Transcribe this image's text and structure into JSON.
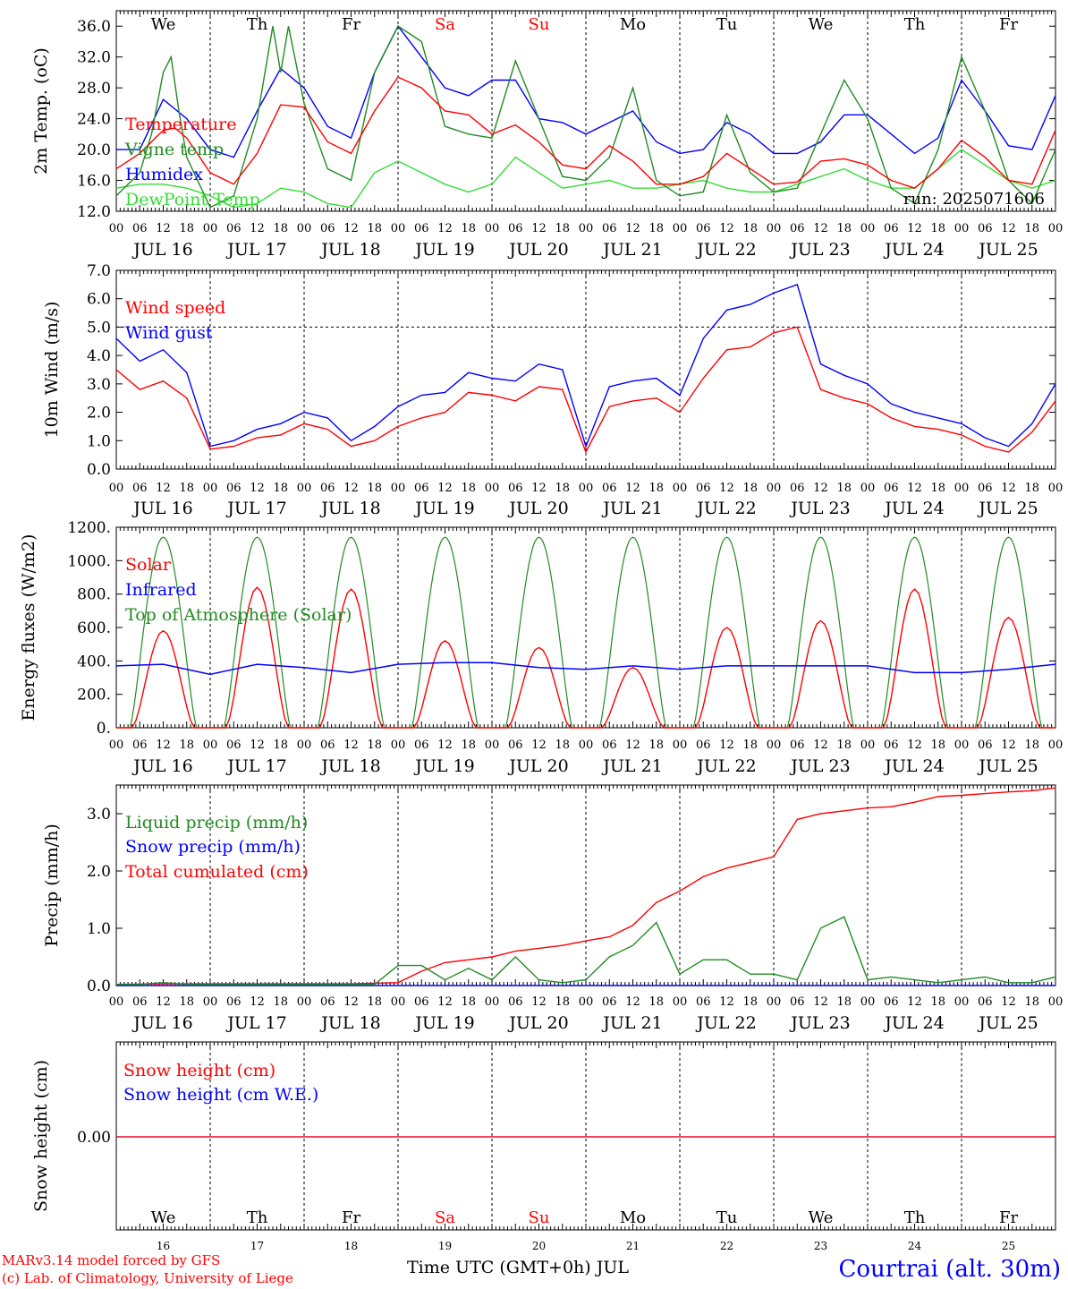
{
  "run_label": "run: 2025071606",
  "footer": {
    "model": "MARv3.14 model forced by GFS",
    "credit": "(c) Lab. of Climatology, University of Liege",
    "xlabel": "Time UTC (GMT+0h) JUL",
    "station": "Courtrai (alt. 30m)"
  },
  "colors": {
    "red": "#ff0000",
    "green": "#228b22",
    "blue": "#0000ff",
    "lightgreen": "#33dd33"
  },
  "time_axis": {
    "hour_labels": [
      "00",
      "06",
      "12",
      "18"
    ],
    "end_label": "00",
    "date_labels": [
      "JUL 16",
      "JUL 17",
      "JUL 18",
      "JUL 19",
      "JUL 20",
      "JUL 21",
      "JUL 22",
      "JUL 23",
      "JUL 24",
      "JUL 25"
    ],
    "weekdays": [
      "We",
      "Th",
      "Fr",
      "Sa",
      "Su",
      "Mo",
      "Tu",
      "We",
      "Th",
      "Fr"
    ],
    "weekend_days": [
      3,
      4
    ],
    "day_numbers": [
      "16",
      "17",
      "18",
      "19",
      "20",
      "21",
      "22",
      "23",
      "24",
      "25"
    ]
  },
  "chart_data": [
    {
      "type": "line",
      "ylabel": "2m Temp. (oC)",
      "ylim": [
        12,
        38
      ],
      "yticks": [
        "12.0",
        "16.0",
        "20.0",
        "24.0",
        "28.0",
        "32.0",
        "36.0"
      ],
      "yvalues": [
        12,
        16,
        20,
        24,
        28,
        32,
        36
      ],
      "x_unit": "hours since JUL 16 00 UTC",
      "series": [
        {
          "name": "Temperature",
          "color": "red",
          "x": [
            0,
            6,
            12,
            15,
            18,
            24,
            30,
            36,
            42,
            48,
            54,
            60,
            66,
            72,
            78,
            84,
            90,
            96,
            102,
            108,
            114,
            120,
            126,
            132,
            138,
            144,
            150,
            156,
            162,
            168,
            174,
            180,
            186,
            192,
            198,
            204,
            210,
            216,
            222,
            228,
            234,
            240
          ],
          "y": [
            17.5,
            19.5,
            22.5,
            22.8,
            21.5,
            17,
            15.5,
            19.5,
            25.8,
            25.5,
            21,
            19.5,
            25,
            29.4,
            28,
            25,
            24.5,
            22,
            23.2,
            21,
            18,
            17.5,
            20.5,
            18.5,
            15.5,
            15.5,
            16.5,
            19.5,
            17.5,
            15.5,
            15.8,
            18.5,
            18.8,
            18,
            16,
            15,
            17.5,
            21.2,
            19,
            16,
            15.5,
            22.5
          ]
        },
        {
          "name": "Vigne temp",
          "color": "green",
          "x": [
            0,
            6,
            9,
            12,
            14,
            16,
            18,
            24,
            30,
            36,
            40,
            42,
            44,
            48,
            54,
            60,
            66,
            72,
            78,
            84,
            90,
            96,
            102,
            108,
            114,
            120,
            126,
            132,
            138,
            144,
            150,
            156,
            162,
            168,
            174,
            180,
            186,
            192,
            198,
            204,
            210,
            216,
            222,
            228,
            234,
            240
          ],
          "y": [
            14,
            17,
            22,
            30,
            32,
            25,
            19,
            12.5,
            14,
            24,
            36,
            30,
            36,
            26,
            17.5,
            16,
            30,
            36,
            34,
            23,
            22,
            21.5,
            31.5,
            24,
            16.5,
            16,
            19,
            28,
            16,
            14,
            14.5,
            24.5,
            17,
            14.5,
            15,
            22,
            29,
            24,
            15,
            13,
            20,
            32,
            25,
            16,
            13,
            20
          ]
        },
        {
          "name": "Humidex",
          "color": "blue",
          "x": [
            0,
            6,
            12,
            18,
            24,
            30,
            36,
            42,
            48,
            54,
            60,
            66,
            72,
            78,
            84,
            90,
            96,
            102,
            108,
            114,
            120,
            126,
            132,
            138,
            144,
            150,
            156,
            162,
            168,
            174,
            180,
            186,
            192,
            198,
            204,
            210,
            216,
            222,
            228,
            234,
            240
          ],
          "y": [
            20,
            20,
            26.5,
            24,
            20,
            19,
            25,
            30.5,
            28,
            23,
            21.5,
            30,
            36,
            32,
            28,
            27,
            29,
            29,
            24,
            23.5,
            22,
            23.5,
            25,
            21,
            19.5,
            20,
            23.5,
            22,
            19.5,
            19.5,
            21,
            24.5,
            24.5,
            22,
            19.5,
            21.5,
            29,
            25,
            20.5,
            20,
            27
          ]
        },
        {
          "name": "DewPoint Temp",
          "color": "lightgreen",
          "x": [
            0,
            6,
            12,
            18,
            24,
            30,
            36,
            42,
            48,
            54,
            60,
            66,
            72,
            78,
            84,
            90,
            96,
            102,
            108,
            114,
            120,
            126,
            132,
            138,
            144,
            150,
            156,
            162,
            168,
            174,
            180,
            186,
            192,
            198,
            204,
            210,
            216,
            222,
            228,
            234,
            240
          ],
          "y": [
            15,
            15.5,
            15.5,
            15,
            14,
            12.5,
            13,
            15,
            14.5,
            13,
            12.5,
            17,
            18.5,
            17,
            15.5,
            14.5,
            15.5,
            19,
            17,
            15,
            15.5,
            16,
            15,
            15,
            15.5,
            16,
            15,
            14.5,
            14.5,
            15.5,
            16.5,
            17.5,
            16,
            15,
            15,
            17.5,
            20,
            18,
            16,
            15,
            16
          ]
        }
      ]
    },
    {
      "type": "line",
      "ylabel": "10m Wind (m/s)",
      "ylim": [
        0,
        7
      ],
      "yticks": [
        "0.0",
        "1.0",
        "2.0",
        "3.0",
        "4.0",
        "5.0",
        "6.0",
        "7.0"
      ],
      "yvalues": [
        0,
        1,
        2,
        3,
        4,
        5,
        6,
        7
      ],
      "ref_line": 5,
      "x_unit": "hours since JUL 16 00 UTC",
      "series": [
        {
          "name": "Wind speed",
          "color": "red",
          "x": [
            0,
            6,
            12,
            18,
            24,
            30,
            36,
            42,
            48,
            54,
            60,
            66,
            72,
            78,
            84,
            90,
            96,
            102,
            108,
            114,
            120,
            126,
            132,
            138,
            144,
            150,
            156,
            162,
            168,
            174,
            180,
            186,
            192,
            198,
            204,
            210,
            216,
            222,
            228,
            234,
            240
          ],
          "y": [
            3.5,
            2.8,
            3.1,
            2.5,
            0.7,
            0.8,
            1.1,
            1.2,
            1.6,
            1.4,
            0.8,
            1,
            1.5,
            1.8,
            2,
            2.7,
            2.6,
            2.4,
            2.9,
            2.8,
            0.6,
            2.2,
            2.4,
            2.5,
            2,
            3.2,
            4.2,
            4.3,
            4.8,
            5,
            2.8,
            2.5,
            2.3,
            1.8,
            1.5,
            1.4,
            1.2,
            0.8,
            0.6,
            1.3,
            2.4
          ]
        },
        {
          "name": "Wind gust",
          "color": "blue",
          "x": [
            0,
            6,
            12,
            18,
            24,
            30,
            36,
            42,
            48,
            54,
            60,
            66,
            72,
            78,
            84,
            90,
            96,
            102,
            108,
            114,
            120,
            126,
            132,
            138,
            144,
            150,
            156,
            162,
            168,
            174,
            180,
            186,
            192,
            198,
            204,
            210,
            216,
            222,
            228,
            234,
            240
          ],
          "y": [
            4.6,
            3.8,
            4.2,
            3.4,
            0.8,
            1,
            1.4,
            1.6,
            2,
            1.8,
            1,
            1.5,
            2.2,
            2.6,
            2.7,
            3.4,
            3.2,
            3.1,
            3.7,
            3.5,
            0.8,
            2.9,
            3.1,
            3.2,
            2.6,
            4.6,
            5.6,
            5.8,
            6.2,
            6.5,
            3.7,
            3.3,
            3,
            2.3,
            2,
            1.8,
            1.6,
            1.1,
            0.8,
            1.6,
            3
          ]
        }
      ]
    },
    {
      "type": "line",
      "ylabel": "Energy fluxes (W/m2)",
      "ylim": [
        0,
        1200
      ],
      "yticks": [
        "0.",
        "200.",
        "400.",
        "600.",
        "800.",
        "1000.",
        "1200."
      ],
      "yvalues": [
        0,
        200,
        400,
        600,
        800,
        1000,
        1200
      ],
      "x_unit": "hours since JUL 16 00 UTC",
      "toa_solar_daily_peak": 1140,
      "series": [
        {
          "name": "Solar",
          "color": "red",
          "day_peaks": [
            580,
            840,
            830,
            520,
            480,
            360,
            600,
            640,
            830,
            660
          ]
        },
        {
          "name": "Infrared",
          "color": "blue",
          "x": [
            0,
            12,
            24,
            36,
            48,
            60,
            72,
            84,
            96,
            108,
            120,
            132,
            144,
            156,
            168,
            180,
            192,
            204,
            216,
            228,
            240
          ],
          "y": [
            370,
            380,
            320,
            380,
            360,
            330,
            380,
            390,
            390,
            360,
            350,
            370,
            350,
            370,
            370,
            370,
            370,
            330,
            330,
            350,
            380
          ]
        },
        {
          "name": "Top of Atmosphere (Solar)",
          "color": "green"
        }
      ]
    },
    {
      "type": "line",
      "ylabel": "Precip (mm/h)",
      "ylim": [
        0,
        3.5
      ],
      "yticks": [
        "0.0",
        "1.0",
        "2.0",
        "3.0"
      ],
      "yvalues": [
        0,
        1,
        2,
        3
      ],
      "x_unit": "hours since JUL 16 00 UTC",
      "series": [
        {
          "name": "Liquid precip (mm/h)",
          "color": "green",
          "x": [
            0,
            6,
            12,
            18,
            24,
            30,
            36,
            42,
            48,
            54,
            60,
            66,
            72,
            78,
            84,
            90,
            96,
            102,
            108,
            114,
            120,
            126,
            132,
            138,
            144,
            150,
            156,
            162,
            168,
            174,
            180,
            186,
            192,
            198,
            204,
            210,
            216,
            222,
            228,
            234,
            240
          ],
          "y": [
            0.02,
            0.02,
            0.05,
            0.02,
            0.02,
            0.02,
            0.02,
            0.02,
            0.02,
            0.02,
            0.02,
            0.02,
            0.35,
            0.35,
            0.1,
            0.3,
            0.1,
            0.5,
            0.1,
            0.05,
            0.1,
            0.5,
            0.7,
            1.1,
            0.2,
            0.45,
            0.45,
            0.2,
            0.2,
            0.1,
            1.0,
            1.2,
            0.1,
            0.15,
            0.1,
            0.05,
            0.1,
            0.15,
            0.05,
            0.05,
            0.15
          ]
        },
        {
          "name": "Snow precip (mm/h)",
          "color": "blue",
          "x": [
            0,
            240
          ],
          "y": [
            0,
            0
          ]
        },
        {
          "name": "Total cumulated (cm)",
          "color": "red",
          "x": [
            0,
            12,
            24,
            36,
            48,
            60,
            72,
            78,
            84,
            90,
            96,
            102,
            108,
            114,
            120,
            126,
            132,
            138,
            144,
            150,
            156,
            162,
            168,
            174,
            180,
            186,
            192,
            198,
            204,
            210,
            216,
            222,
            228,
            234,
            240
          ],
          "y": [
            0.02,
            0.03,
            0.03,
            0.03,
            0.03,
            0.03,
            0.05,
            0.25,
            0.4,
            0.45,
            0.5,
            0.6,
            0.65,
            0.7,
            0.78,
            0.85,
            1.05,
            1.45,
            1.65,
            1.9,
            2.05,
            2.15,
            2.25,
            2.9,
            3.0,
            3.05,
            3.1,
            3.12,
            3.2,
            3.3,
            3.32,
            3.35,
            3.38,
            3.4,
            3.45
          ]
        }
      ]
    },
    {
      "type": "line",
      "ylabel": "Snow height (cm)",
      "yticks": [
        "0.00"
      ],
      "yvalues": [
        0
      ],
      "series": [
        {
          "name": "Snow height (cm)",
          "color": "red",
          "x": [
            0,
            240
          ],
          "y": [
            0,
            0
          ]
        },
        {
          "name": "Snow height (cm W.E.)",
          "color": "blue",
          "x": [
            0,
            240
          ],
          "y": [
            0,
            0
          ]
        }
      ]
    }
  ]
}
